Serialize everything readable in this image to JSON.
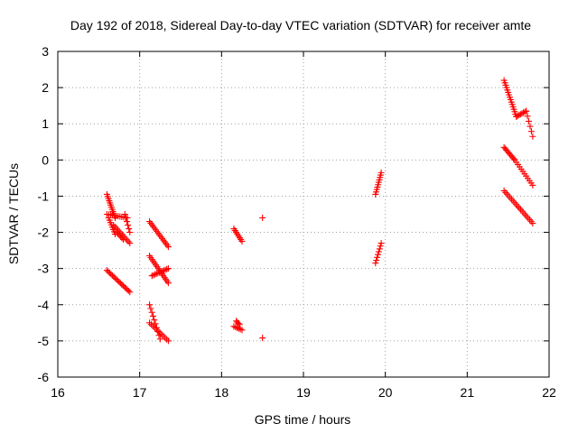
{
  "chart_data": {
    "type": "scatter",
    "title": "Day 192 of 2018, Sidereal Day-to-day VTEC variation (SDTVAR) for receiver amte",
    "xlabel": "GPS time / hours",
    "ylabel": "SDTVAR / TECUs",
    "xlim": [
      16,
      22
    ],
    "ylim": [
      -6,
      3
    ],
    "xticks": [
      "16",
      "17",
      "18",
      "19",
      "20",
      "21",
      "22"
    ],
    "yticks": [
      "-6",
      "-5",
      "-4",
      "-3",
      "-2",
      "-1",
      "0",
      "1",
      "2",
      "3"
    ],
    "grid": true,
    "marker": "+",
    "color": "#ff0000",
    "series": [
      {
        "name": "SDTVAR",
        "segments": [
          {
            "x0": 16.6,
            "y0": -0.95,
            "x1": 16.7,
            "y1": -1.6,
            "n": 12
          },
          {
            "x0": 16.6,
            "y0": -1.5,
            "x1": 16.85,
            "y1": -1.6,
            "n": 12
          },
          {
            "x0": 16.62,
            "y0": -1.6,
            "x1": 16.7,
            "y1": -2.05,
            "n": 8
          },
          {
            "x0": 16.68,
            "y0": -1.8,
            "x1": 16.88,
            "y1": -2.3,
            "n": 12
          },
          {
            "x0": 16.72,
            "y0": -2.0,
            "x1": 16.8,
            "y1": -2.2,
            "n": 6
          },
          {
            "x0": 16.82,
            "y0": -1.5,
            "x1": 16.88,
            "y1": -2.0,
            "n": 6
          },
          {
            "x0": 16.6,
            "y0": -3.05,
            "x1": 16.88,
            "y1": -3.65,
            "n": 18
          },
          {
            "x0": 17.12,
            "y0": -1.7,
            "x1": 17.35,
            "y1": -2.4,
            "n": 16
          },
          {
            "x0": 17.12,
            "y0": -2.65,
            "x1": 17.35,
            "y1": -3.4,
            "n": 16
          },
          {
            "x0": 17.15,
            "y0": -3.2,
            "x1": 17.35,
            "y1": -3.0,
            "n": 12
          },
          {
            "x0": 17.12,
            "y0": -4.0,
            "x1": 17.25,
            "y1": -4.95,
            "n": 10
          },
          {
            "x0": 17.12,
            "y0": -4.5,
            "x1": 17.35,
            "y1": -5.0,
            "n": 12
          },
          {
            "x0": 18.15,
            "y0": -1.9,
            "x1": 18.25,
            "y1": -2.25,
            "n": 8
          },
          {
            "x0": 18.15,
            "y0": -4.6,
            "x1": 18.25,
            "y1": -4.7,
            "n": 6
          },
          {
            "x0": 18.18,
            "y0": -4.45,
            "x1": 18.22,
            "y1": -4.55,
            "n": 4
          },
          {
            "x0": 19.88,
            "y0": -0.95,
            "x1": 19.95,
            "y1": -0.35,
            "n": 10
          },
          {
            "x0": 19.88,
            "y0": -2.85,
            "x1": 19.95,
            "y1": -2.3,
            "n": 8
          },
          {
            "x0": 21.45,
            "y0": 2.2,
            "x1": 21.6,
            "y1": 1.2,
            "n": 16
          },
          {
            "x0": 21.6,
            "y0": 1.2,
            "x1": 21.72,
            "y1": 1.35,
            "n": 8
          },
          {
            "x0": 21.72,
            "y0": 1.35,
            "x1": 21.8,
            "y1": 0.65,
            "n": 6
          },
          {
            "x0": 21.45,
            "y0": 0.35,
            "x1": 21.58,
            "y1": 0.0,
            "n": 10
          },
          {
            "x0": 21.58,
            "y0": 0.0,
            "x1": 21.8,
            "y1": -0.7,
            "n": 12
          },
          {
            "x0": 21.45,
            "y0": -0.85,
            "x1": 21.8,
            "y1": -1.75,
            "n": 20
          }
        ],
        "points": [
          {
            "x": 18.5,
            "y": -1.6
          },
          {
            "x": 18.5,
            "y": -4.92
          }
        ]
      }
    ]
  }
}
